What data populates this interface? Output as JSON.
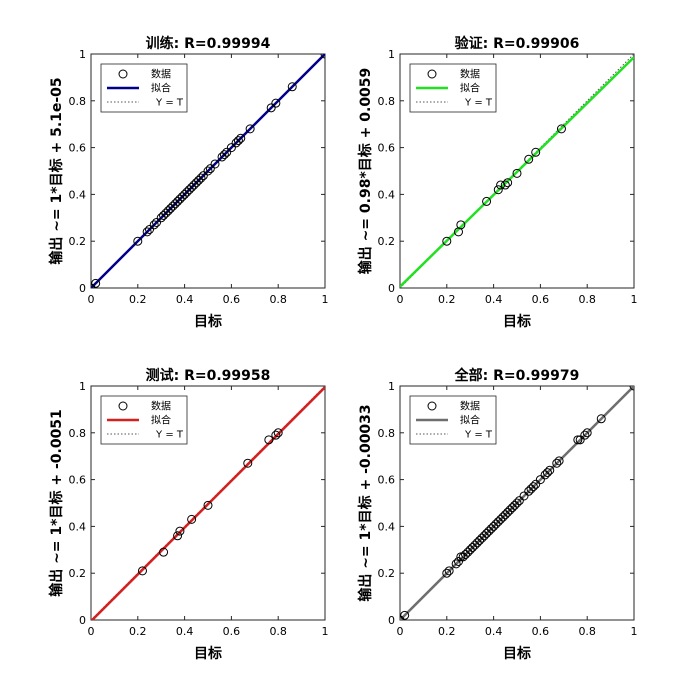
{
  "chart_data": [
    {
      "type": "scatter",
      "title": "训练: R=0.99994",
      "xlabel": "目标",
      "ylabel": "输出 ~= 1*目标 + 5.1e-05",
      "xlim": [
        0,
        1
      ],
      "ylim": [
        0,
        1
      ],
      "xticks": [
        "0",
        "0.2",
        "0.4",
        "0.6",
        "0.8",
        "1"
      ],
      "yticks": [
        "0",
        "0.2",
        "0.4",
        "0.6",
        "0.8",
        "1"
      ],
      "grid": false,
      "legend": {
        "placement": "top-left",
        "entries": [
          "数据",
          "拟合",
          "Y = T"
        ]
      },
      "fit_color": "#00008b",
      "fit": {
        "slope": 1,
        "intercept": 5.1e-05
      },
      "points": [
        [
          0,
          0
        ],
        [
          0.02,
          0.02
        ],
        [
          0.2,
          0.2
        ],
        [
          0.24,
          0.24
        ],
        [
          0.25,
          0.25
        ],
        [
          0.27,
          0.27
        ],
        [
          0.28,
          0.28
        ],
        [
          0.3,
          0.3
        ],
        [
          0.31,
          0.31
        ],
        [
          0.32,
          0.32
        ],
        [
          0.33,
          0.33
        ],
        [
          0.34,
          0.34
        ],
        [
          0.35,
          0.35
        ],
        [
          0.36,
          0.36
        ],
        [
          0.37,
          0.37
        ],
        [
          0.38,
          0.38
        ],
        [
          0.39,
          0.39
        ],
        [
          0.4,
          0.4
        ],
        [
          0.41,
          0.41
        ],
        [
          0.42,
          0.42
        ],
        [
          0.43,
          0.43
        ],
        [
          0.44,
          0.44
        ],
        [
          0.45,
          0.45
        ],
        [
          0.46,
          0.46
        ],
        [
          0.47,
          0.47
        ],
        [
          0.48,
          0.48
        ],
        [
          0.5,
          0.5
        ],
        [
          0.51,
          0.51
        ],
        [
          0.53,
          0.53
        ],
        [
          0.56,
          0.56
        ],
        [
          0.57,
          0.57
        ],
        [
          0.58,
          0.58
        ],
        [
          0.6,
          0.6
        ],
        [
          0.62,
          0.62
        ],
        [
          0.63,
          0.63
        ],
        [
          0.64,
          0.64
        ],
        [
          0.68,
          0.68
        ],
        [
          0.77,
          0.77
        ],
        [
          0.79,
          0.79
        ],
        [
          0.86,
          0.86
        ],
        [
          1,
          1
        ]
      ]
    },
    {
      "type": "scatter",
      "title": "验证: R=0.99906",
      "xlabel": "目标",
      "ylabel": "输出 ~= 0.98*目标 + 0.0059",
      "xlim": [
        0,
        1
      ],
      "ylim": [
        0,
        1
      ],
      "xticks": [
        "0",
        "0.2",
        "0.4",
        "0.6",
        "0.8",
        "1"
      ],
      "yticks": [
        "0",
        "0.2",
        "0.4",
        "0.6",
        "0.8",
        "1"
      ],
      "grid": false,
      "legend": {
        "placement": "top-left",
        "entries": [
          "数据",
          "拟合",
          "Y = T"
        ]
      },
      "fit_color": "#22e022",
      "fit": {
        "slope": 0.98,
        "intercept": 0.0059
      },
      "points": [
        [
          0.2,
          0.2
        ],
        [
          0.25,
          0.24
        ],
        [
          0.26,
          0.27
        ],
        [
          0.37,
          0.37
        ],
        [
          0.42,
          0.42
        ],
        [
          0.43,
          0.44
        ],
        [
          0.45,
          0.44
        ],
        [
          0.46,
          0.45
        ],
        [
          0.5,
          0.49
        ],
        [
          0.55,
          0.55
        ],
        [
          0.58,
          0.58
        ],
        [
          0.69,
          0.68
        ]
      ]
    },
    {
      "type": "scatter",
      "title": "测试: R=0.99958",
      "xlabel": "目标",
      "ylabel": "输出 ~= 1*目标 + -0.0051",
      "xlim": [
        0,
        1
      ],
      "ylim": [
        0,
        1
      ],
      "xticks": [
        "0",
        "0.2",
        "0.4",
        "0.6",
        "0.8",
        "1"
      ],
      "yticks": [
        "0",
        "0.2",
        "0.4",
        "0.6",
        "0.8",
        "1"
      ],
      "grid": false,
      "legend": {
        "placement": "top-left",
        "entries": [
          "数据",
          "拟合",
          "Y = T"
        ]
      },
      "fit_color": "#d42020",
      "fit": {
        "slope": 1,
        "intercept": -0.0051
      },
      "points": [
        [
          0.22,
          0.21
        ],
        [
          0.31,
          0.29
        ],
        [
          0.37,
          0.36
        ],
        [
          0.38,
          0.38
        ],
        [
          0.43,
          0.43
        ],
        [
          0.5,
          0.49
        ],
        [
          0.67,
          0.67
        ],
        [
          0.76,
          0.77
        ],
        [
          0.8,
          0.8
        ],
        [
          0.79,
          0.79
        ]
      ]
    },
    {
      "type": "scatter",
      "title": "全部: R=0.99979",
      "xlabel": "目标",
      "ylabel": "输出 ~= 1*目标 + -0.00033",
      "xlim": [
        0,
        1
      ],
      "ylim": [
        0,
        1
      ],
      "xticks": [
        "0",
        "0.2",
        "0.4",
        "0.6",
        "0.8",
        "1"
      ],
      "yticks": [
        "0",
        "0.2",
        "0.4",
        "0.6",
        "0.8",
        "1"
      ],
      "grid": false,
      "legend": {
        "placement": "top-left",
        "entries": [
          "数据",
          "拟合",
          "Y = T"
        ]
      },
      "fit_color": "#6e6e6e",
      "fit": {
        "slope": 1,
        "intercept": -0.00033
      },
      "points": [
        [
          0,
          0
        ],
        [
          0.02,
          0.02
        ],
        [
          0.2,
          0.2
        ],
        [
          0.21,
          0.21
        ],
        [
          0.24,
          0.24
        ],
        [
          0.25,
          0.25
        ],
        [
          0.26,
          0.27
        ],
        [
          0.27,
          0.27
        ],
        [
          0.28,
          0.28
        ],
        [
          0.29,
          0.29
        ],
        [
          0.3,
          0.3
        ],
        [
          0.31,
          0.31
        ],
        [
          0.32,
          0.32
        ],
        [
          0.33,
          0.33
        ],
        [
          0.34,
          0.34
        ],
        [
          0.35,
          0.35
        ],
        [
          0.36,
          0.36
        ],
        [
          0.37,
          0.37
        ],
        [
          0.38,
          0.38
        ],
        [
          0.39,
          0.39
        ],
        [
          0.4,
          0.4
        ],
        [
          0.41,
          0.41
        ],
        [
          0.42,
          0.42
        ],
        [
          0.43,
          0.43
        ],
        [
          0.44,
          0.44
        ],
        [
          0.45,
          0.45
        ],
        [
          0.46,
          0.46
        ],
        [
          0.47,
          0.47
        ],
        [
          0.48,
          0.48
        ],
        [
          0.49,
          0.49
        ],
        [
          0.5,
          0.5
        ],
        [
          0.51,
          0.51
        ],
        [
          0.53,
          0.53
        ],
        [
          0.55,
          0.55
        ],
        [
          0.56,
          0.56
        ],
        [
          0.57,
          0.57
        ],
        [
          0.58,
          0.58
        ],
        [
          0.6,
          0.6
        ],
        [
          0.62,
          0.62
        ],
        [
          0.63,
          0.63
        ],
        [
          0.64,
          0.64
        ],
        [
          0.67,
          0.67
        ],
        [
          0.68,
          0.68
        ],
        [
          0.76,
          0.77
        ],
        [
          0.77,
          0.77
        ],
        [
          0.79,
          0.79
        ],
        [
          0.8,
          0.8
        ],
        [
          0.86,
          0.86
        ],
        [
          1,
          1
        ]
      ]
    }
  ]
}
